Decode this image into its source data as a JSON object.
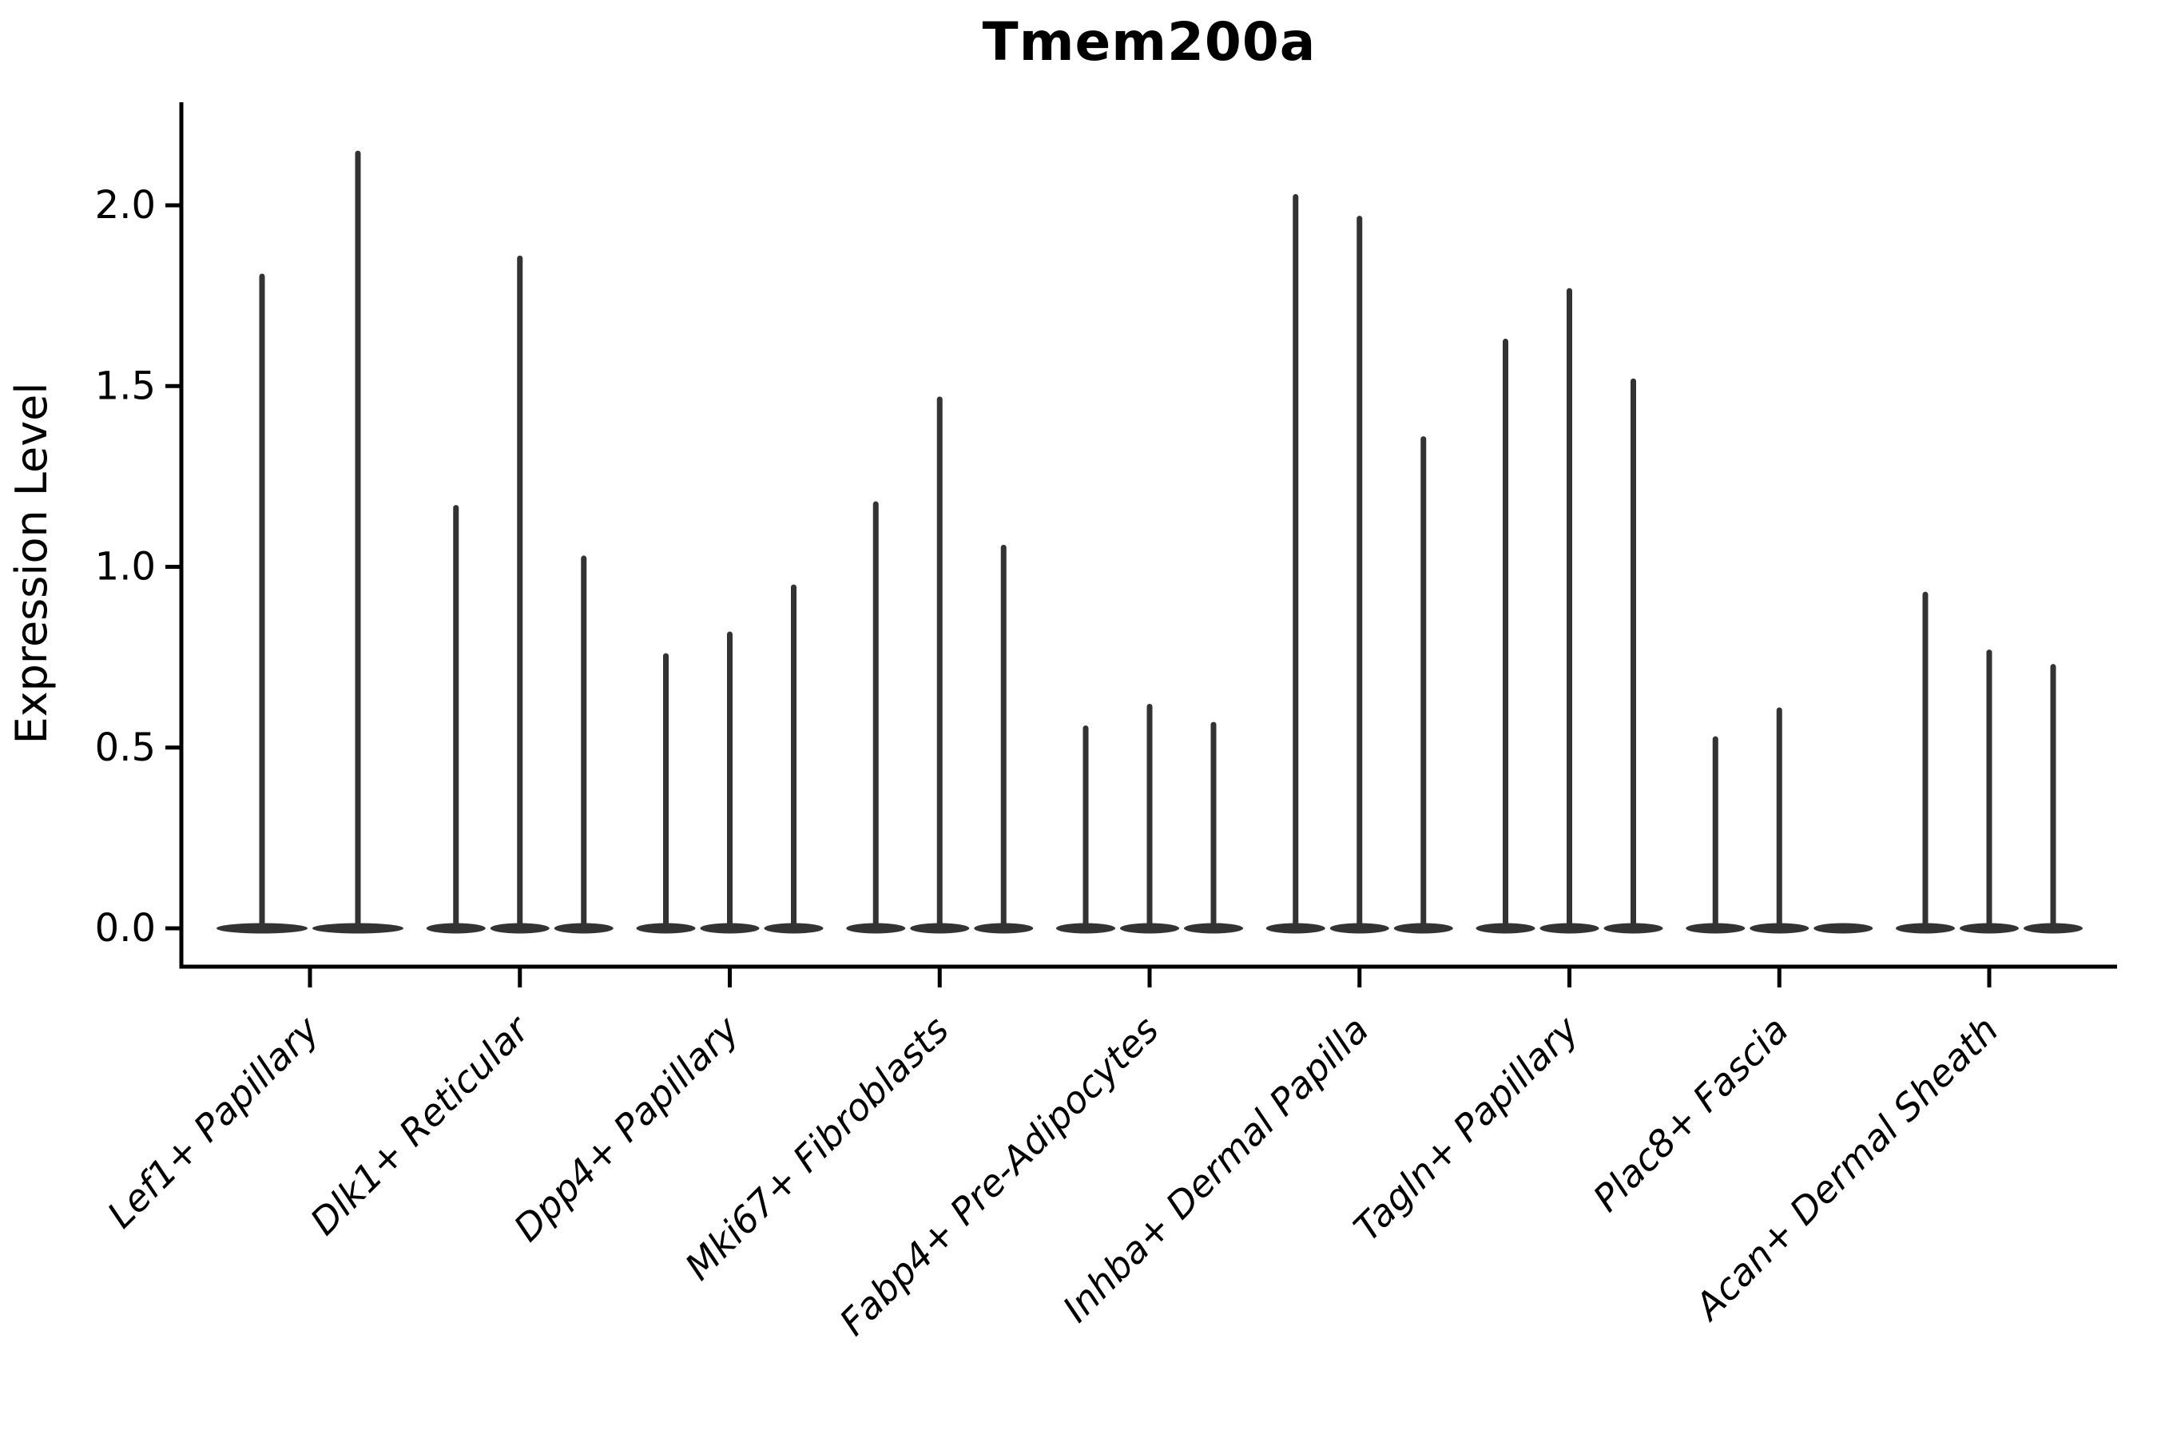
{
  "chart": {
    "title": "Tmem200a",
    "ylabel": "Expression Level"
  },
  "chart_data": {
    "type": "violin",
    "title": "Tmem200a",
    "xlabel": "",
    "ylabel": "Expression Level",
    "ylim": [
      -0.11,
      2.28
    ],
    "grid": false,
    "legend": "none",
    "ytick_labels": [
      "0.0",
      "0.5",
      "1.0",
      "1.5",
      "2.0"
    ],
    "ytick_values": [
      0.0,
      0.5,
      1.0,
      1.5,
      2.0
    ],
    "violin_color": "#333333",
    "axis_color": "#000000",
    "note": "collapsed violins: flat base at 0 with thin density spike; spike top = max expression",
    "categories": [
      "Lef1+ Papillary",
      "Dlk1+ Reticular",
      "Dpp4+ Papillary",
      "Mki67+ Fibroblasts",
      "Fabp4+ Pre-Adipocytes",
      "Inhba+ Dermal Papilla",
      "Tagln+ Papillary",
      "Plac8+ Fascia",
      "Acan+ Dermal Sheath"
    ],
    "series": [
      {
        "category": "Lef1+ Papillary",
        "max_values": [
          1.81,
          2.15
        ]
      },
      {
        "category": "Dlk1+ Reticular",
        "max_values": [
          1.17,
          1.86,
          1.03
        ]
      },
      {
        "category": "Dpp4+ Papillary",
        "max_values": [
          0.76,
          0.82,
          0.95
        ]
      },
      {
        "category": "Mki67+ Fibroblasts",
        "max_values": [
          1.18,
          1.47,
          1.06
        ]
      },
      {
        "category": "Fabp4+ Pre-Adipocytes",
        "max_values": [
          0.56,
          0.62,
          0.57
        ]
      },
      {
        "category": "Inhba+ Dermal Papilla",
        "max_values": [
          2.03,
          1.97,
          1.36
        ]
      },
      {
        "category": "Tagln+ Papillary",
        "max_values": [
          1.63,
          1.77,
          1.52
        ]
      },
      {
        "category": "Plac8+ Fascia",
        "max_values": [
          0.53,
          0.61,
          0
        ]
      },
      {
        "category": "Acan+ Dermal Sheath",
        "max_values": [
          0.93,
          0.77,
          0.73
        ]
      }
    ]
  }
}
